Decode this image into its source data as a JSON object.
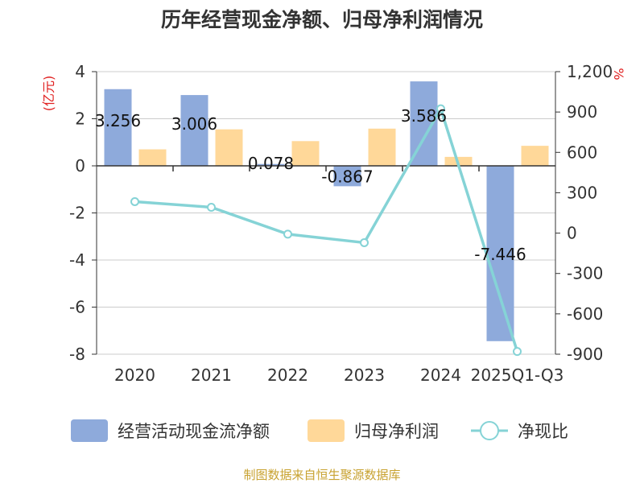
{
  "title": "历年经营现金净额、归母净利润情况",
  "source": "制图数据来自恒生聚源数据库",
  "chart_data": {
    "type": "bar",
    "categories": [
      "2020",
      "2021",
      "2022",
      "2023",
      "2024",
      "2025Q1-Q3"
    ],
    "series": [
      {
        "name": "经营活动现金流净额",
        "kind": "bar",
        "axis": "left",
        "color": "#8eaadb",
        "values": [
          3.256,
          3.006,
          0.078,
          -0.867,
          3.586,
          -7.446
        ],
        "labels": [
          "3.256",
          "3.006",
          "0.078",
          "-0.867",
          "3.586",
          "-7.446"
        ]
      },
      {
        "name": "归母净利润",
        "kind": "bar",
        "axis": "left",
        "color": "#ffd899",
        "values": [
          0.7,
          1.55,
          1.05,
          1.58,
          0.38,
          0.85
        ]
      },
      {
        "name": "净现比",
        "kind": "line",
        "axis": "right",
        "color": "#85d3d6",
        "values": [
          234,
          192,
          -8,
          -71,
          924,
          -880
        ]
      }
    ],
    "y_left": {
      "label": "(亿元)",
      "ylim": [
        -8,
        4
      ],
      "ticks": [
        4,
        2,
        0,
        -2,
        -4,
        -6,
        -8
      ],
      "tick_labels": [
        "4",
        "2",
        "0",
        "-2",
        "-4",
        "-6",
        "-8"
      ]
    },
    "y_right": {
      "label": "%",
      "ylim": [
        -900,
        1200
      ],
      "ticks": [
        1200,
        900,
        600,
        300,
        0,
        -300,
        -600,
        -900
      ],
      "tick_labels": [
        "1,200",
        "900",
        "600",
        "300",
        "0",
        "-300",
        "-600",
        "-900"
      ]
    },
    "grid": true,
    "legend_position": "bottom"
  }
}
